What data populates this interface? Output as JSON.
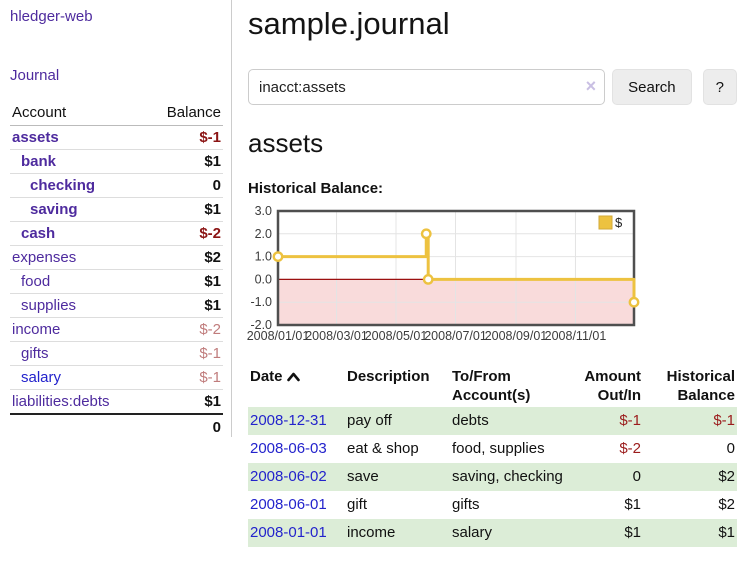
{
  "sidebar": {
    "app_title": "hledger-web",
    "journal_link": "Journal",
    "accounts": {
      "col_account": "Account",
      "col_balance": "Balance",
      "rows": [
        {
          "name": "assets",
          "depth": 1,
          "bold": true,
          "balance": "$-1",
          "neg": "strong"
        },
        {
          "name": "bank",
          "depth": 2,
          "bold": true,
          "balance": "$1"
        },
        {
          "name": "checking",
          "depth": 3,
          "bold": true,
          "balance": "0"
        },
        {
          "name": "saving",
          "depth": 3,
          "bold": true,
          "balance": "$1"
        },
        {
          "name": "cash",
          "depth": 2,
          "bold": true,
          "balance": "$-2",
          "neg": "strong"
        },
        {
          "name": "expenses",
          "depth": 1,
          "bold": false,
          "balance": "$2"
        },
        {
          "name": "food",
          "depth": 2,
          "bold": false,
          "balance": "$1"
        },
        {
          "name": "supplies",
          "depth": 2,
          "bold": false,
          "balance": "$1"
        },
        {
          "name": "income",
          "depth": 1,
          "bold": false,
          "balance": "$-2",
          "neg": "soft"
        },
        {
          "name": "gifts",
          "depth": 2,
          "bold": false,
          "balance": "$-1",
          "neg": "soft"
        },
        {
          "name": "salary",
          "depth": 2,
          "bold": false,
          "balance": "$-1",
          "neg": "soft",
          "blue": true
        },
        {
          "name": "liabilities:debts",
          "depth": 1,
          "bold": false,
          "balance": "$1"
        }
      ],
      "total": "0"
    }
  },
  "header": {
    "title": "sample.journal"
  },
  "search": {
    "value": "inacct:assets",
    "clear_icon": "×",
    "search_button": "Search",
    "help_button": "?"
  },
  "account_page": {
    "heading": "assets",
    "chart_label": "Historical Balance:"
  },
  "chart_data": {
    "type": "line",
    "title": "Historical Balance:",
    "series": [
      {
        "name": "$",
        "color": "#edc240",
        "steps": true,
        "points": [
          [
            "2008-01-01",
            1
          ],
          [
            "2008-06-01",
            2
          ],
          [
            "2008-06-03",
            0
          ],
          [
            "2008-12-31",
            -1
          ]
        ]
      }
    ],
    "x_range": [
      "2008-01-01",
      "2008-12-31"
    ],
    "ylim": [
      -2,
      3
    ],
    "y_ticks": [
      3.0,
      2.0,
      1.0,
      0.0,
      -1.0,
      -2.0
    ],
    "x_tick_labels": [
      "2008/01/01",
      "2008/03/01",
      "2008/05/01",
      "2008/07/01",
      "2008/09/01",
      "2008/11/01"
    ],
    "legend_position": "top-right",
    "grid": true,
    "negative_region_color": "#f9dbdb",
    "zero_line_color": "#9c1010",
    "border_color": "#4f4f4f",
    "grid_color": "#e4e4e4"
  },
  "register": {
    "headers": {
      "date": "Date",
      "description": "Description",
      "tofrom1": "To/From",
      "tofrom2": "Account(s)",
      "amount1": "Amount",
      "amount2": "Out/In",
      "hist1": "Historical",
      "hist2": "Balance"
    },
    "rows": [
      {
        "date": "2008-12-31",
        "description": "pay off",
        "accounts": "debts",
        "amount": "$-1",
        "amount_neg": true,
        "balance": "$-1",
        "balance_neg": true
      },
      {
        "date": "2008-06-03",
        "description": "eat & shop",
        "accounts": "food, supplies",
        "amount": "$-2",
        "amount_neg": true,
        "balance": "0",
        "balance_neg": false
      },
      {
        "date": "2008-06-02",
        "description": "save",
        "accounts": "saving, checking",
        "amount": "0",
        "amount_neg": false,
        "balance": "$2",
        "balance_neg": false
      },
      {
        "date": "2008-06-01",
        "description": "gift",
        "accounts": "gifts",
        "amount": "$1",
        "amount_neg": false,
        "balance": "$2",
        "balance_neg": false
      },
      {
        "date": "2008-01-01",
        "description": "income",
        "accounts": "salary",
        "amount": "$1",
        "amount_neg": false,
        "balance": "$1",
        "balance_neg": false
      }
    ]
  }
}
